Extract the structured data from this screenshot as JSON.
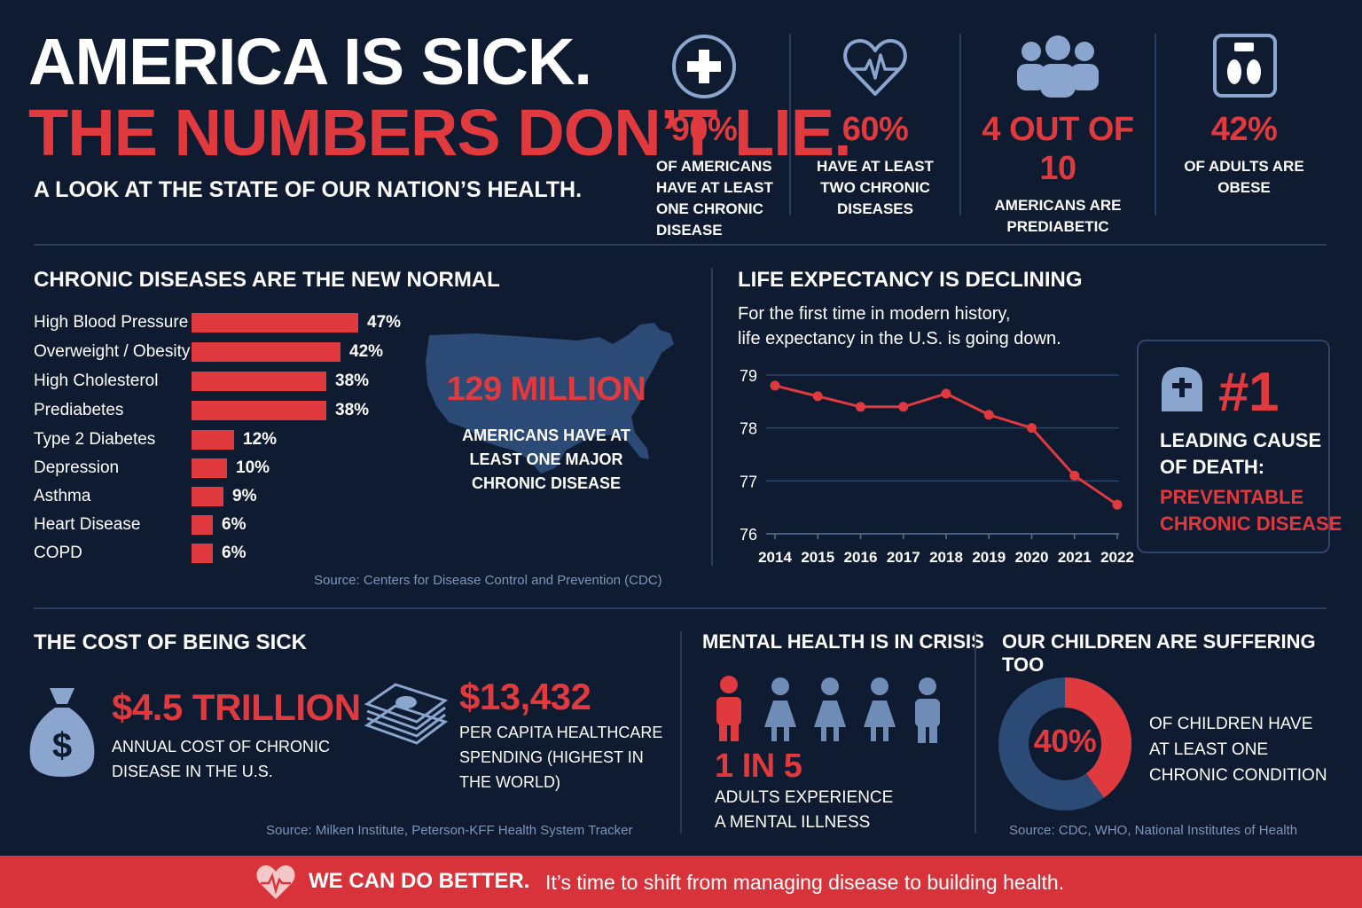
{
  "header": {
    "title_line1": "AMERICA IS SICK.",
    "title_line2": "THE NUMBERS DON’T LIE.",
    "subtitle": "A LOOK AT THE STATE OF OUR NATION’S HEALTH."
  },
  "stats": [
    {
      "value": "90%",
      "desc": [
        "OF AMERICANS",
        "HAVE AT LEAST",
        "ONE CHRONIC",
        "DISEASE"
      ],
      "icon": "medical-cross-icon"
    },
    {
      "value": "60%",
      "desc": [
        "HAVE AT LEAST",
        "TWO CHRONIC",
        "DISEASES"
      ],
      "icon": "heart-pulse-icon"
    },
    {
      "value": "4 OUT OF 10",
      "desc": [
        "AMERICANS ARE",
        "PREDIABETIC"
      ],
      "icon": "people-group-icon"
    },
    {
      "value": "42%",
      "desc": [
        "OF ADULTS ARE",
        "OBESE"
      ],
      "icon": "scale-icon"
    }
  ],
  "chronic": {
    "title": "CHRONIC DISEASES ARE THE NEW NORMAL",
    "items": [
      {
        "label": "High Blood Pressure",
        "value": 47,
        "pct": "47%"
      },
      {
        "label": "Overweight / Obesity",
        "value": 42,
        "pct": "42%"
      },
      {
        "label": "High Cholesterol",
        "value": 38,
        "pct": "38%"
      },
      {
        "label": "Prediabetes",
        "value": 38,
        "pct": "38%"
      },
      {
        "label": "Type 2 Diabetes",
        "value": 12,
        "pct": "12%"
      },
      {
        "label": "Depression",
        "value": 10,
        "pct": "10%"
      },
      {
        "label": "Asthma",
        "value": 9,
        "pct": "9%"
      },
      {
        "label": "Heart Disease",
        "value": 6,
        "pct": "6%"
      },
      {
        "label": "COPD",
        "value": 6,
        "pct": "6%"
      }
    ],
    "map_value": "129 MILLION",
    "map_desc": [
      "AMERICANS HAVE AT",
      "LEAST ONE MAJOR",
      "CHRONIC DISEASE"
    ],
    "source": "Source: Centers for Disease Control and Prevention (CDC)"
  },
  "life": {
    "title": "LIFE EXPECTANCY IS DECLINING",
    "text_line1": "For the first time in modern history,",
    "text_line2": "life expectancy in the U.S. is going down.",
    "cause_rank": "#1",
    "cause_line1": "LEADING CAUSE",
    "cause_line2": "OF DEATH:",
    "cause_red1": "PREVENTABLE",
    "cause_red2": "CHRONIC DISEASE"
  },
  "chart_data": {
    "type": "line",
    "title": "LIFE EXPECTANCY IS DECLINING",
    "x": [
      "2014",
      "2015",
      "2016",
      "2017",
      "2018",
      "2019",
      "2020",
      "2021",
      "2022"
    ],
    "series": [
      {
        "name": "U.S. life expectancy",
        "values": [
          78.8,
          78.6,
          78.4,
          78.4,
          78.65,
          78.25,
          78.0,
          77.1,
          76.55
        ]
      }
    ],
    "ylim": [
      76,
      79
    ],
    "yticks": [
      "79",
      "78",
      "77",
      "76"
    ],
    "xlabel": "",
    "ylabel": "",
    "grid": true,
    "color": "#e03a3e"
  },
  "cost": {
    "title": "THE COST OF BEING SICK",
    "total_value": "$4.5 TRILLION",
    "total_desc": [
      "ANNUAL COST OF CHRONIC",
      "DISEASE IN THE U.S."
    ],
    "percap_value": "$13,432",
    "percap_desc": [
      "PER CAPITA HEALTHCARE",
      "SPENDING (HIGHEST IN",
      "THE WORLD)"
    ],
    "source": "Source: Milken Institute, Peterson-KFF Health System Tracker"
  },
  "mental": {
    "title": "MENTAL HEALTH IS IN CRISIS",
    "value": "1 IN 5",
    "desc": [
      "ADULTS EXPERIENCE",
      "A MENTAL ILLNESS"
    ],
    "highlighted": 1,
    "total": 5
  },
  "children": {
    "title": "OUR CHILDREN ARE SUFFERING TOO",
    "value": "40%",
    "fraction": 0.4,
    "desc": [
      "OF CHILDREN HAVE",
      "AT LEAST ONE",
      "CHRONIC CONDITION"
    ],
    "source": "Source: CDC, WHO, National Institutes of Health"
  },
  "banner": {
    "bold": "WE CAN DO BETTER.",
    "text": "It’s time to shift from managing disease to building health."
  },
  "colors": {
    "background": "#0f1b30",
    "accent": "#e03a3e",
    "icon": "#8aa6cf"
  }
}
